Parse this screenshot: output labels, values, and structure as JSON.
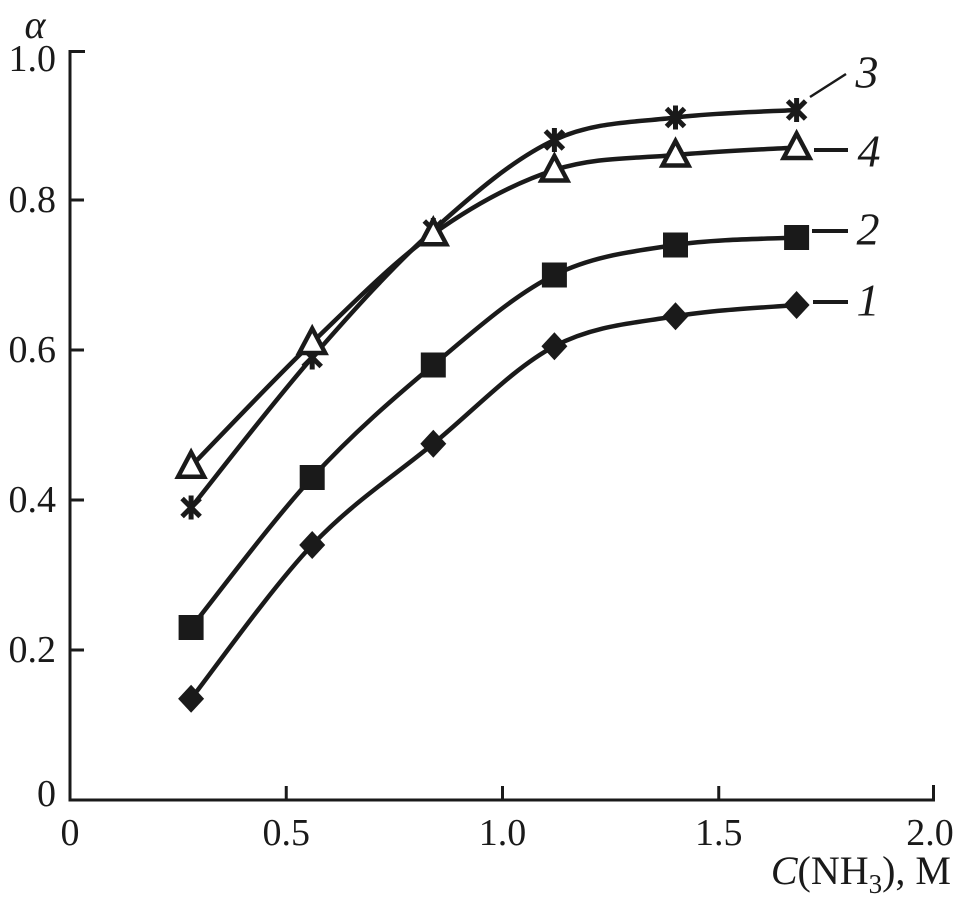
{
  "chart_data": {
    "type": "line",
    "title": "",
    "ylabel": "α",
    "xlabel_display": "C(NH3), M",
    "xlabel_parts": {
      "c": "C",
      "mid": "(NH",
      "sub": "3",
      "end": "), M"
    },
    "xlim": [
      0,
      2.0
    ],
    "ylim": [
      0,
      1.0
    ],
    "grid": false,
    "legend_position": "inline-right-curve-labels",
    "line_color": "#1a1a1a",
    "background": "#ffffff",
    "x_ticks": [
      {
        "value": 0,
        "label": "0"
      },
      {
        "value": 0.5,
        "label": "0.5"
      },
      {
        "value": 1.0,
        "label": "1.0"
      },
      {
        "value": 1.5,
        "label": "1.5"
      },
      {
        "value": 2.0,
        "label": "2.0"
      }
    ],
    "y_ticks": [
      {
        "value": 0,
        "label": "0"
      },
      {
        "value": 0.2,
        "label": "0.2"
      },
      {
        "value": 0.4,
        "label": "0.4"
      },
      {
        "value": 0.6,
        "label": "0.6"
      },
      {
        "value": 0.8,
        "label": "0.8"
      },
      {
        "value": 1.0,
        "label": "1.0"
      }
    ],
    "x": [
      0.28,
      0.56,
      0.84,
      1.12,
      1.4,
      1.68
    ],
    "series": [
      {
        "name": "1",
        "marker": "filled-diamond",
        "color": "#1a1a1a",
        "values": [
          0.135,
          0.34,
          0.475,
          0.605,
          0.645,
          0.66
        ]
      },
      {
        "name": "2",
        "marker": "filled-square",
        "color": "#1a1a1a",
        "values": [
          0.23,
          0.43,
          0.58,
          0.7,
          0.74,
          0.75
        ]
      },
      {
        "name": "3",
        "marker": "asterisk",
        "color": "#1a1a1a",
        "values": [
          0.39,
          0.59,
          0.76,
          0.88,
          0.91,
          0.92
        ]
      },
      {
        "name": "4",
        "marker": "open-triangle",
        "color": "#1a1a1a",
        "values": [
          0.445,
          0.61,
          0.755,
          0.84,
          0.86,
          0.87
        ]
      }
    ]
  }
}
